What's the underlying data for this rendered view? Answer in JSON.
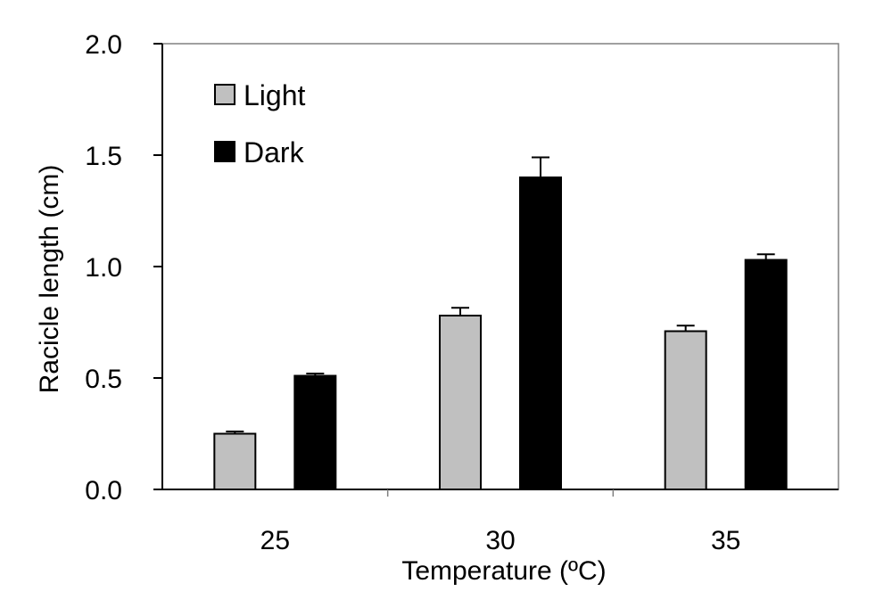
{
  "chart_data": {
    "type": "bar",
    "xlabel": "Temperature (ºC)",
    "ylabel": "Racicle length (cm)",
    "ylim": [
      0,
      2.0
    ],
    "yticks": [
      "0.0",
      "0.5",
      "1.0",
      "1.5",
      "2.0"
    ],
    "ytick_values": [
      0,
      0.5,
      1.0,
      1.5,
      2.0
    ],
    "categories": [
      "25",
      "30",
      "35"
    ],
    "legend_position": "top-left",
    "grid": false,
    "series": [
      {
        "name": "Light",
        "color": "#c0c0c0",
        "values": [
          0.25,
          0.78,
          0.71
        ],
        "errors": [
          0.01,
          0.035,
          0.025
        ]
      },
      {
        "name": "Dark",
        "color": "#000000",
        "values": [
          0.51,
          1.4,
          1.03
        ],
        "errors": [
          0.01,
          0.09,
          0.025
        ]
      }
    ]
  }
}
